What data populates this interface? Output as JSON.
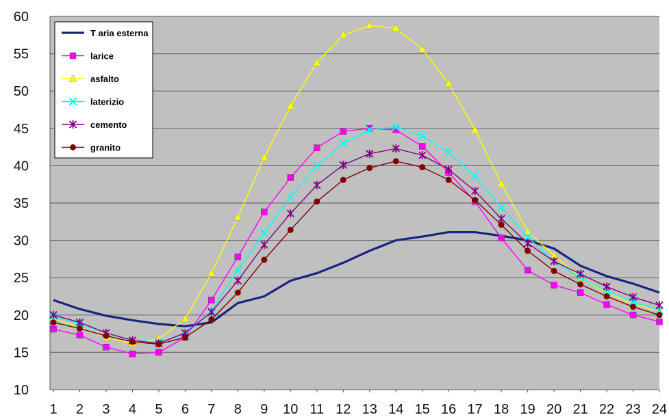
{
  "chart_data": {
    "type": "line",
    "title": "",
    "xlabel": "",
    "ylabel": "",
    "x": [
      1,
      2,
      3,
      4,
      5,
      6,
      7,
      8,
      9,
      10,
      11,
      12,
      13,
      14,
      15,
      16,
      17,
      18,
      19,
      20,
      21,
      22,
      23,
      24
    ],
    "xlim": [
      1,
      24
    ],
    "ylim": [
      10,
      60
    ],
    "yticks": [
      10,
      15,
      20,
      25,
      30,
      35,
      40,
      45,
      50,
      55,
      60
    ],
    "grid": true,
    "legend_position": "top-left",
    "plot_background": "#c0c0c0",
    "series": [
      {
        "name": "T aria esterna",
        "color": "#1a237e",
        "marker": "none",
        "values": [
          22,
          20.8,
          19.9,
          19.3,
          18.8,
          18.5,
          19.0,
          21.6,
          22.5,
          24.6,
          25.6,
          27.0,
          28.6,
          30.0,
          30.5,
          31.1,
          31.1,
          30.6,
          30.0,
          28.9,
          26.6,
          25.2,
          24.2,
          23.0
        ]
      },
      {
        "name": "larice",
        "color": "#ff00ff",
        "marker": "square",
        "values": [
          18.1,
          17.3,
          15.7,
          14.8,
          15.0,
          17.0,
          22.0,
          27.8,
          33.8,
          38.4,
          42.4,
          44.6,
          45.0,
          44.8,
          42.6,
          39.1,
          35.2,
          30.3,
          26.0,
          24.0,
          23.0,
          21.4,
          20.0,
          19.1
        ]
      },
      {
        "name": "asfalto",
        "color": "#ffff00",
        "marker": "triangle",
        "values": [
          19.5,
          18.4,
          17.0,
          16.2,
          16.8,
          19.5,
          25.6,
          33.1,
          41.1,
          48.0,
          53.8,
          57.5,
          58.8,
          58.4,
          55.6,
          51.0,
          44.8,
          37.6,
          31.2,
          28.0,
          25.0,
          23.0,
          21.5,
          20.5
        ]
      },
      {
        "name": "laterizio",
        "color": "#00ffff",
        "marker": "x",
        "values": [
          19.8,
          18.8,
          17.6,
          16.6,
          16.4,
          17.4,
          20.6,
          26.0,
          31.0,
          35.8,
          40.0,
          43.0,
          44.8,
          45.2,
          44.0,
          41.8,
          38.6,
          34.4,
          30.4,
          27.2,
          25.0,
          23.2,
          21.8,
          20.6
        ]
      },
      {
        "name": "cemento",
        "color": "#800080",
        "marker": "star",
        "values": [
          20.0,
          19.0,
          17.6,
          16.6,
          16.2,
          17.6,
          20.4,
          24.6,
          29.4,
          33.6,
          37.4,
          40.1,
          41.6,
          42.3,
          41.4,
          39.5,
          36.6,
          32.9,
          29.6,
          27.2,
          25.5,
          23.8,
          22.4,
          21.3
        ]
      },
      {
        "name": "granito",
        "color": "#800000",
        "marker": "circle",
        "values": [
          19.0,
          18.2,
          17.2,
          16.4,
          16.1,
          17.0,
          19.4,
          23.0,
          27.4,
          31.4,
          35.2,
          38.1,
          39.7,
          40.6,
          39.8,
          38.1,
          35.4,
          32.1,
          28.6,
          25.9,
          24.1,
          22.5,
          21.1,
          20.0
        ]
      }
    ]
  }
}
